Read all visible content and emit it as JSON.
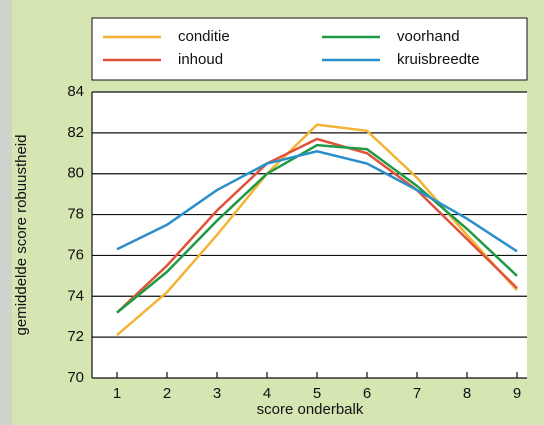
{
  "chart_data": {
    "type": "line",
    "x_label": "score onderbalk",
    "y_label": "gemiddelde score robuustheid",
    "x": [
      1,
      2,
      3,
      4,
      5,
      6,
      7,
      8,
      9
    ],
    "xlim": [
      0.5,
      9.2
    ],
    "xticks": [
      1,
      2,
      3,
      4,
      5,
      6,
      7,
      8,
      9
    ],
    "ylim": [
      70,
      84
    ],
    "yticks": [
      70,
      72,
      74,
      76,
      78,
      80,
      82,
      84
    ],
    "grid": true,
    "series": [
      {
        "name": "conditie",
        "color": "#f5b335",
        "values": [
          72.1,
          74.2,
          77.0,
          80.0,
          82.4,
          82.1,
          79.8,
          77.0,
          74.3
        ]
      },
      {
        "name": "inhoud",
        "color": "#e0533a",
        "values": [
          73.2,
          75.5,
          78.2,
          80.5,
          81.7,
          81.0,
          79.2,
          76.8,
          74.4
        ]
      },
      {
        "name": "voorhand",
        "color": "#1e9a46",
        "values": [
          73.2,
          75.2,
          77.7,
          80.0,
          81.4,
          81.2,
          79.4,
          77.3,
          75.0
        ]
      },
      {
        "name": "kruisbreedte",
        "color": "#2a8fc8",
        "values": [
          76.3,
          77.5,
          79.2,
          80.5,
          81.1,
          80.5,
          79.2,
          77.8,
          76.2
        ]
      }
    ]
  }
}
